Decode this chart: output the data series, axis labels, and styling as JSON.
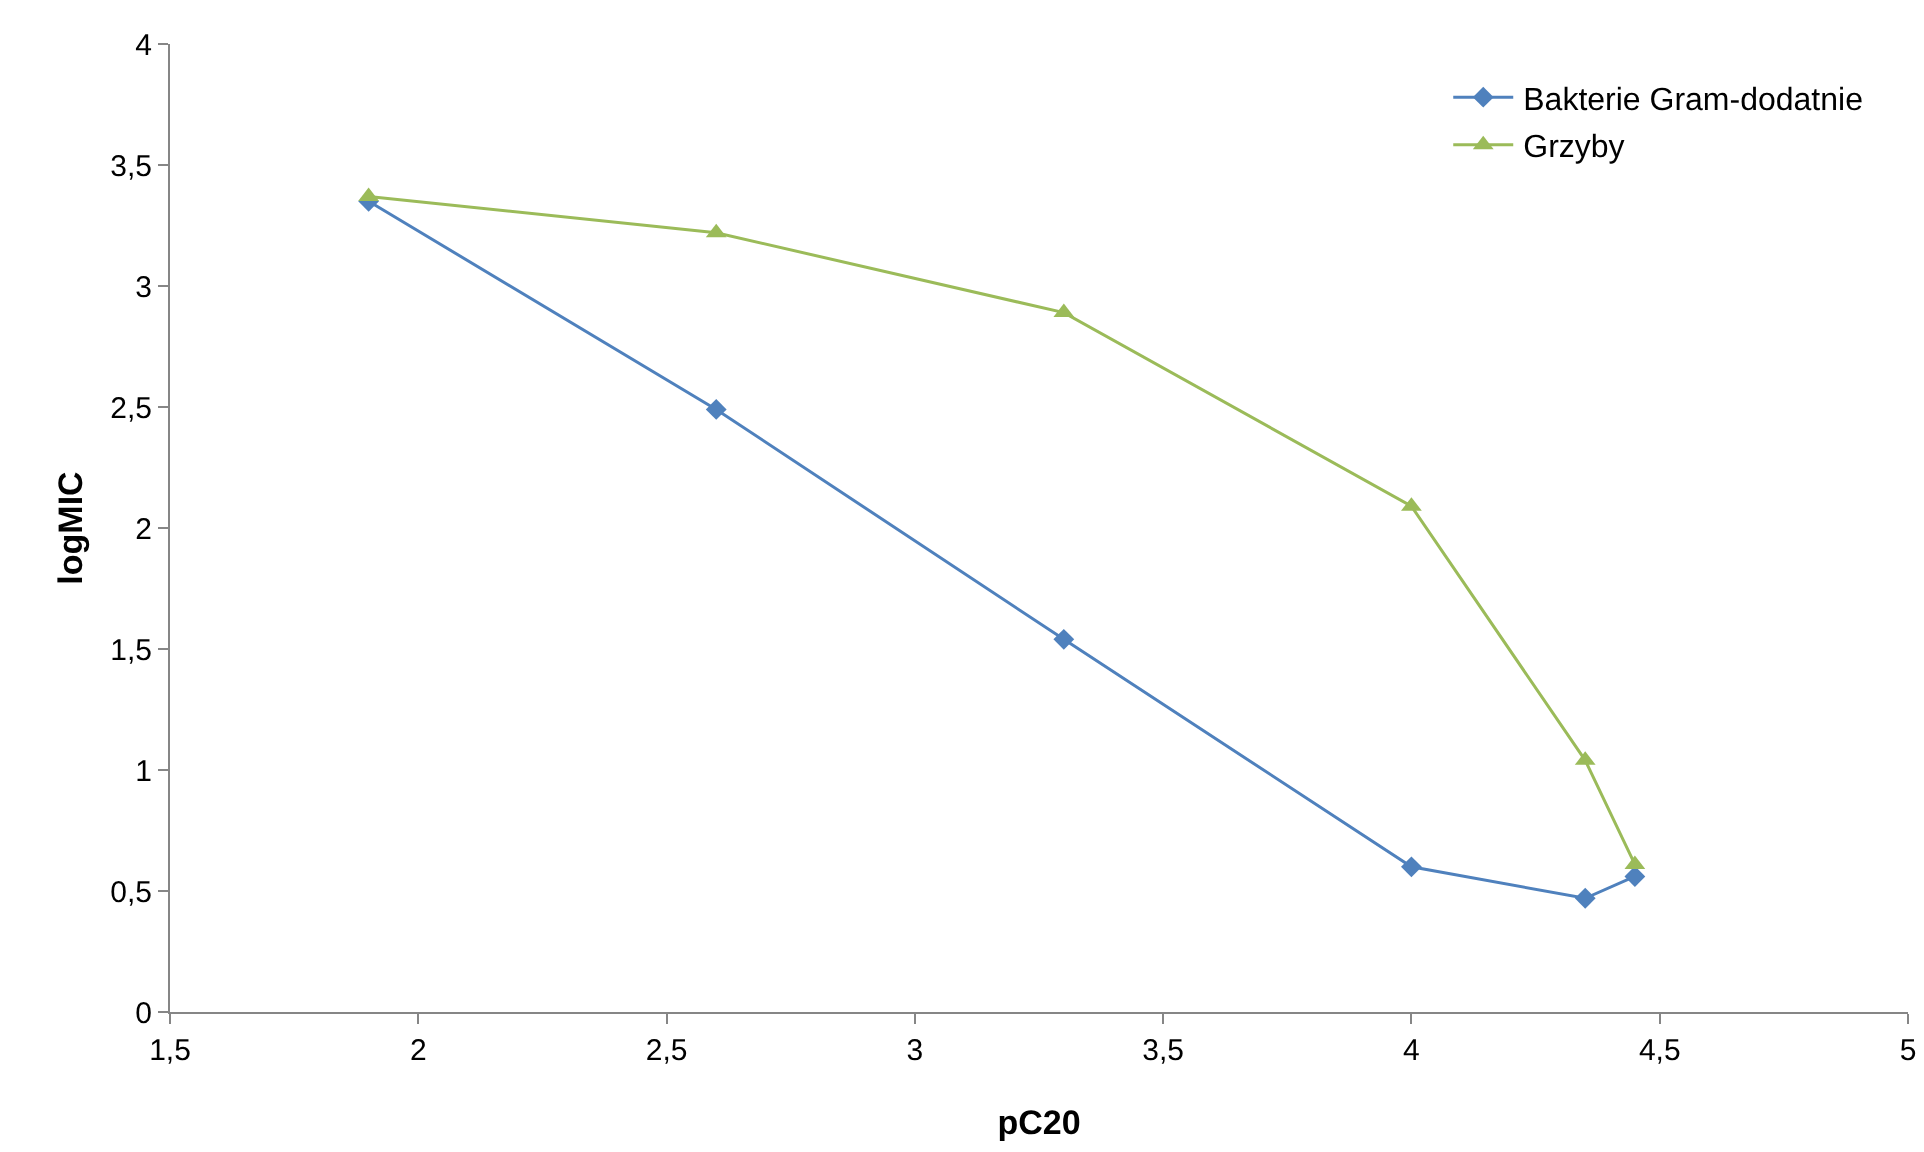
{
  "chart_data": {
    "type": "line",
    "xlabel": "pC20",
    "ylabel": "logMIC",
    "x": [
      1.9,
      2.6,
      3.3,
      4.0,
      4.35,
      4.45
    ],
    "series": [
      {
        "name": "Bakterie Gram-dodatnie",
        "color": "#4f81bd",
        "marker": "diamond",
        "values": [
          3.35,
          2.49,
          1.54,
          0.6,
          0.47,
          0.56
        ]
      },
      {
        "name": "Grzyby",
        "color": "#9bbb59",
        "marker": "triangle",
        "values": [
          3.37,
          3.22,
          2.89,
          2.09,
          1.04,
          0.61
        ]
      }
    ],
    "xlim": [
      1.5,
      5
    ],
    "xticks": [
      {
        "value": 1.5,
        "label": "1,5"
      },
      2,
      {
        "value": 2.5,
        "label": "2,5"
      },
      3,
      {
        "value": 3.5,
        "label": "3,5"
      },
      4,
      {
        "value": 4.5,
        "label": "4,5"
      },
      5
    ],
    "ylim": [
      0,
      4
    ],
    "yticks": [
      0,
      {
        "value": 0.5,
        "label": "0,5"
      },
      1,
      {
        "value": 1.5,
        "label": "1,5"
      },
      2,
      {
        "value": 2.5,
        "label": "2,5"
      },
      3,
      {
        "value": 3.5,
        "label": "3,5"
      },
      4
    ],
    "grid": false,
    "legend": "top right",
    "line_style": "solid"
  }
}
